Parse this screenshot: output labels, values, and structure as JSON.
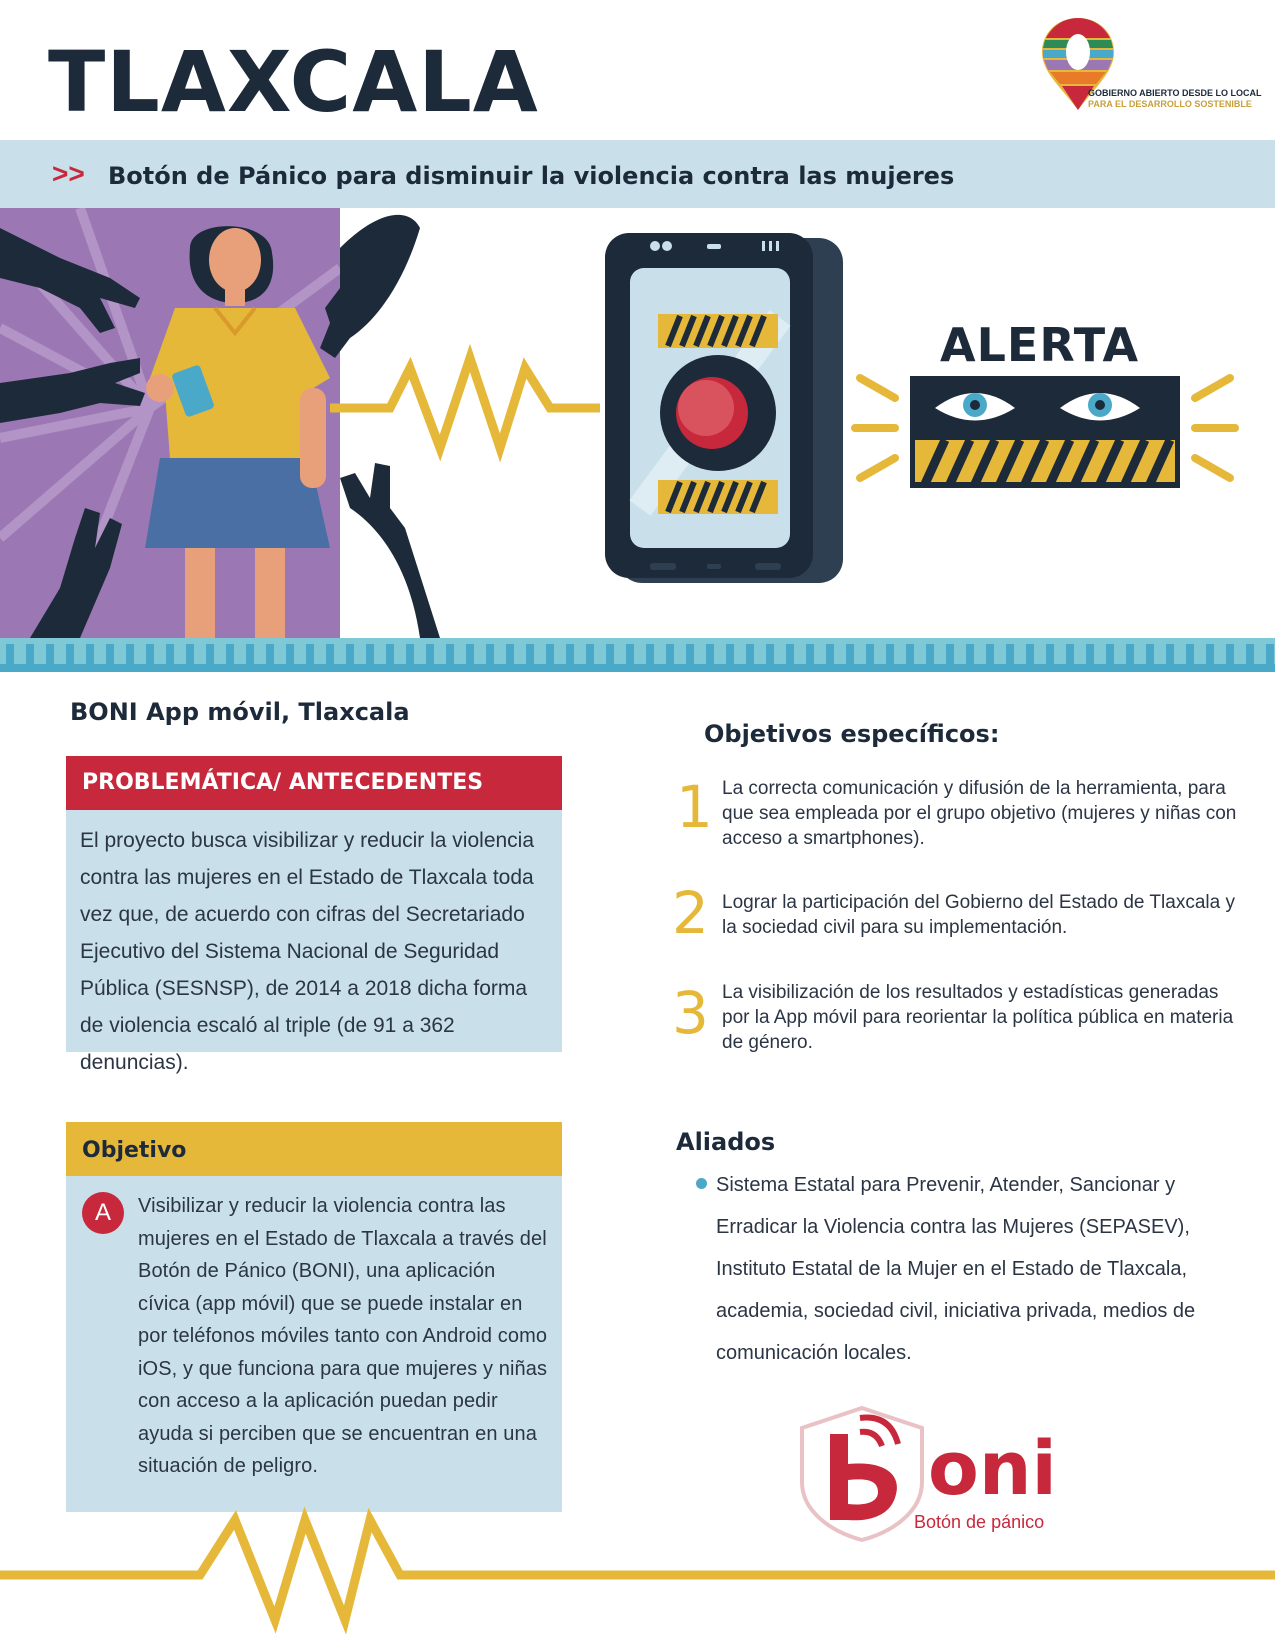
{
  "header": {
    "title": "TLAXCALA",
    "logo_text_line1": "GOBIERNO ABIERTO DESDE LO LOCAL",
    "logo_text_line2": "PARA EL DESARROLLO SOSTENIBLE"
  },
  "subtitle": {
    "arrows": ">>",
    "text": "Botón de Pánico para disminuir la violencia contra las mujeres"
  },
  "illustration": {
    "alert_label": "ALERTA"
  },
  "left": {
    "heading": "BONI App móvil, Tlaxcala",
    "problematica": {
      "title": "PROBLEMÁTICA/ ANTECEDENTES",
      "text": "El proyecto busca visibilizar y reducir la violencia contra las mujeres en el Estado de Tlaxcala toda vez que, de acuerdo con cifras del Secretariado Ejecutivo del Sistema Nacional de Seguridad Pública (SESNSP), de 2014 a 2018 dicha forma de violencia escaló al triple (de 91 a 362 denuncias)."
    },
    "objetivo": {
      "title": "Objetivo",
      "badge": "A",
      "text": "Visibilizar y reducir la violencia contra las mujeres en el Estado de Tlaxcala a través del Botón de Pánico (BONI), una aplicación cívica (app móvil) que se puede instalar en por teléfonos móviles tanto con Android como iOS, y que funciona para que mujeres y niñas con acceso a la aplicación puedan pedir ayuda si perciben que se encuentran en una situación de peligro."
    }
  },
  "right": {
    "objetivos_heading": "Objetivos específicos:",
    "objetivos": [
      {
        "num": "1",
        "text": "La correcta comunicación y difusión de la herramienta, para que sea empleada por el grupo objetivo (mujeres y niñas con acceso a smartphones)."
      },
      {
        "num": "2",
        "text": "Lograr la participación del Gobierno del Estado de Tlaxcala y la sociedad civil para su implementación."
      },
      {
        "num": "3",
        "text": "La visibilización de los resultados y estadísticas generadas por la App móvil para reorientar la política pública en materia de género."
      }
    ],
    "aliados_heading": "Aliados",
    "aliados_text": "Sistema Estatal para Prevenir, Atender, Sancionar y Erradicar la Violencia contra las Mujeres (SEPASEV), Instituto Estatal de la Mujer en el Estado de Tlaxcala, academia, sociedad civil, iniciativa privada, medios de comunicación locales."
  },
  "boni_logo": {
    "word": "oni",
    "subtitle": "Botón de pánico"
  },
  "colors": {
    "navy": "#1d2a3a",
    "red": "#c8283b",
    "yellow": "#e6b83a",
    "light_blue": "#c9e0ea",
    "teal": "#4aa9c9",
    "purple": "#9b78b3"
  }
}
